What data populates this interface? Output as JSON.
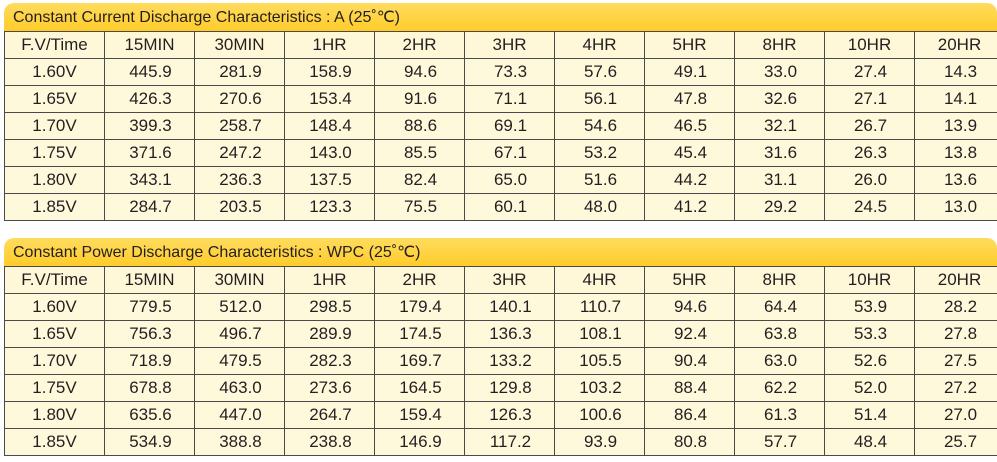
{
  "tables": [
    {
      "title": "Constant Current Discharge Characteristics : A (25˚℃)",
      "columns": [
        "F.V/Time",
        "15MIN",
        "30MIN",
        "1HR",
        "2HR",
        "3HR",
        "4HR",
        "5HR",
        "8HR",
        "10HR",
        "20HR"
      ],
      "rows": [
        [
          "1.60V",
          "445.9",
          "281.9",
          "158.9",
          "94.6",
          "73.3",
          "57.6",
          "49.1",
          "33.0",
          "27.4",
          "14.3"
        ],
        [
          "1.65V",
          "426.3",
          "270.6",
          "153.4",
          "91.6",
          "71.1",
          "56.1",
          "47.8",
          "32.6",
          "27.1",
          "14.1"
        ],
        [
          "1.70V",
          "399.3",
          "258.7",
          "148.4",
          "88.6",
          "69.1",
          "54.6",
          "46.5",
          "32.1",
          "26.7",
          "13.9"
        ],
        [
          "1.75V",
          "371.6",
          "247.2",
          "143.0",
          "85.5",
          "67.1",
          "53.2",
          "45.4",
          "31.6",
          "26.3",
          "13.8"
        ],
        [
          "1.80V",
          "343.1",
          "236.3",
          "137.5",
          "82.4",
          "65.0",
          "51.6",
          "44.2",
          "31.1",
          "26.0",
          "13.6"
        ],
        [
          "1.85V",
          "284.7",
          "203.5",
          "123.3",
          "75.5",
          "60.1",
          "48.0",
          "41.2",
          "29.2",
          "24.5",
          "13.0"
        ]
      ]
    },
    {
      "title": "Constant Power Discharge Characteristics : WPC (25˚℃)",
      "columns": [
        "F.V/Time",
        "15MIN",
        "30MIN",
        "1HR",
        "2HR",
        "3HR",
        "4HR",
        "5HR",
        "8HR",
        "10HR",
        "20HR"
      ],
      "rows": [
        [
          "1.60V",
          "779.5",
          "512.0",
          "298.5",
          "179.4",
          "140.1",
          "110.7",
          "94.6",
          "64.4",
          "53.9",
          "28.2"
        ],
        [
          "1.65V",
          "756.3",
          "496.7",
          "289.9",
          "174.5",
          "136.3",
          "108.1",
          "92.4",
          "63.8",
          "53.3",
          "27.8"
        ],
        [
          "1.70V",
          "718.9",
          "479.5",
          "282.3",
          "169.7",
          "133.2",
          "105.5",
          "90.4",
          "63.0",
          "52.6",
          "27.5"
        ],
        [
          "1.75V",
          "678.8",
          "463.0",
          "273.6",
          "164.5",
          "129.8",
          "103.2",
          "88.4",
          "62.2",
          "52.0",
          "27.2"
        ],
        [
          "1.80V",
          "635.6",
          "447.0",
          "264.7",
          "159.4",
          "126.3",
          "100.6",
          "86.4",
          "61.3",
          "51.4",
          "27.0"
        ],
        [
          "1.85V",
          "534.9",
          "388.8",
          "238.8",
          "146.9",
          "117.2",
          "93.9",
          "80.8",
          "57.7",
          "48.4",
          "25.7"
        ]
      ]
    }
  ],
  "colors": {
    "header_fill": "#ffd24a",
    "cell_fill": "#fff9dc",
    "grid_line": "#4a4a4a"
  }
}
